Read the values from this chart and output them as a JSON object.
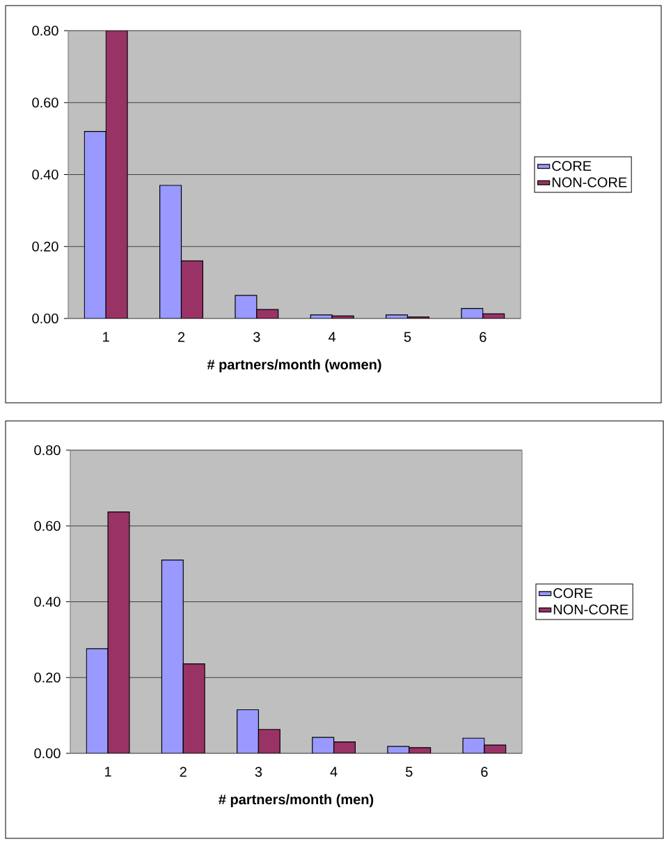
{
  "chart_data": [
    {
      "type": "bar",
      "xlabel": "# partners/month (women)",
      "categories": [
        "1",
        "2",
        "3",
        "4",
        "5",
        "6"
      ],
      "series": [
        {
          "name": "CORE",
          "color": "#9999ff",
          "values": [
            0.52,
            0.37,
            0.064,
            0.01,
            0.01,
            0.028
          ]
        },
        {
          "name": "NON-CORE",
          "color": "#993366",
          "values": [
            0.8,
            0.16,
            0.025,
            0.007,
            0.004,
            0.013
          ]
        }
      ],
      "ylim": [
        0,
        0.8
      ],
      "yticks": [
        {
          "value": 0,
          "label": "0.00"
        },
        {
          "value": 0.2,
          "label": "0.20"
        },
        {
          "value": 0.4,
          "label": "0.40"
        },
        {
          "value": 0.6,
          "label": "0.60"
        },
        {
          "value": 0.8,
          "label": "0.80"
        }
      ],
      "grid": "y",
      "legend": "right"
    },
    {
      "type": "bar",
      "xlabel": "# partners/month (men)",
      "categories": [
        "1",
        "2",
        "3",
        "4",
        "5",
        "6"
      ],
      "series": [
        {
          "name": "CORE",
          "color": "#9999ff",
          "values": [
            0.276,
            0.51,
            0.115,
            0.042,
            0.018,
            0.04
          ]
        },
        {
          "name": "NON-CORE",
          "color": "#993366",
          "values": [
            0.637,
            0.236,
            0.063,
            0.03,
            0.015,
            0.022
          ]
        }
      ],
      "ylim": [
        0,
        0.8
      ],
      "yticks": [
        {
          "value": 0,
          "label": "0.00"
        },
        {
          "value": 0.2,
          "label": "0.20"
        },
        {
          "value": 0.4,
          "label": "0.40"
        },
        {
          "value": 0.6,
          "label": "0.60"
        },
        {
          "value": 0.8,
          "label": "0.80"
        }
      ],
      "grid": "y",
      "legend": "right"
    }
  ]
}
